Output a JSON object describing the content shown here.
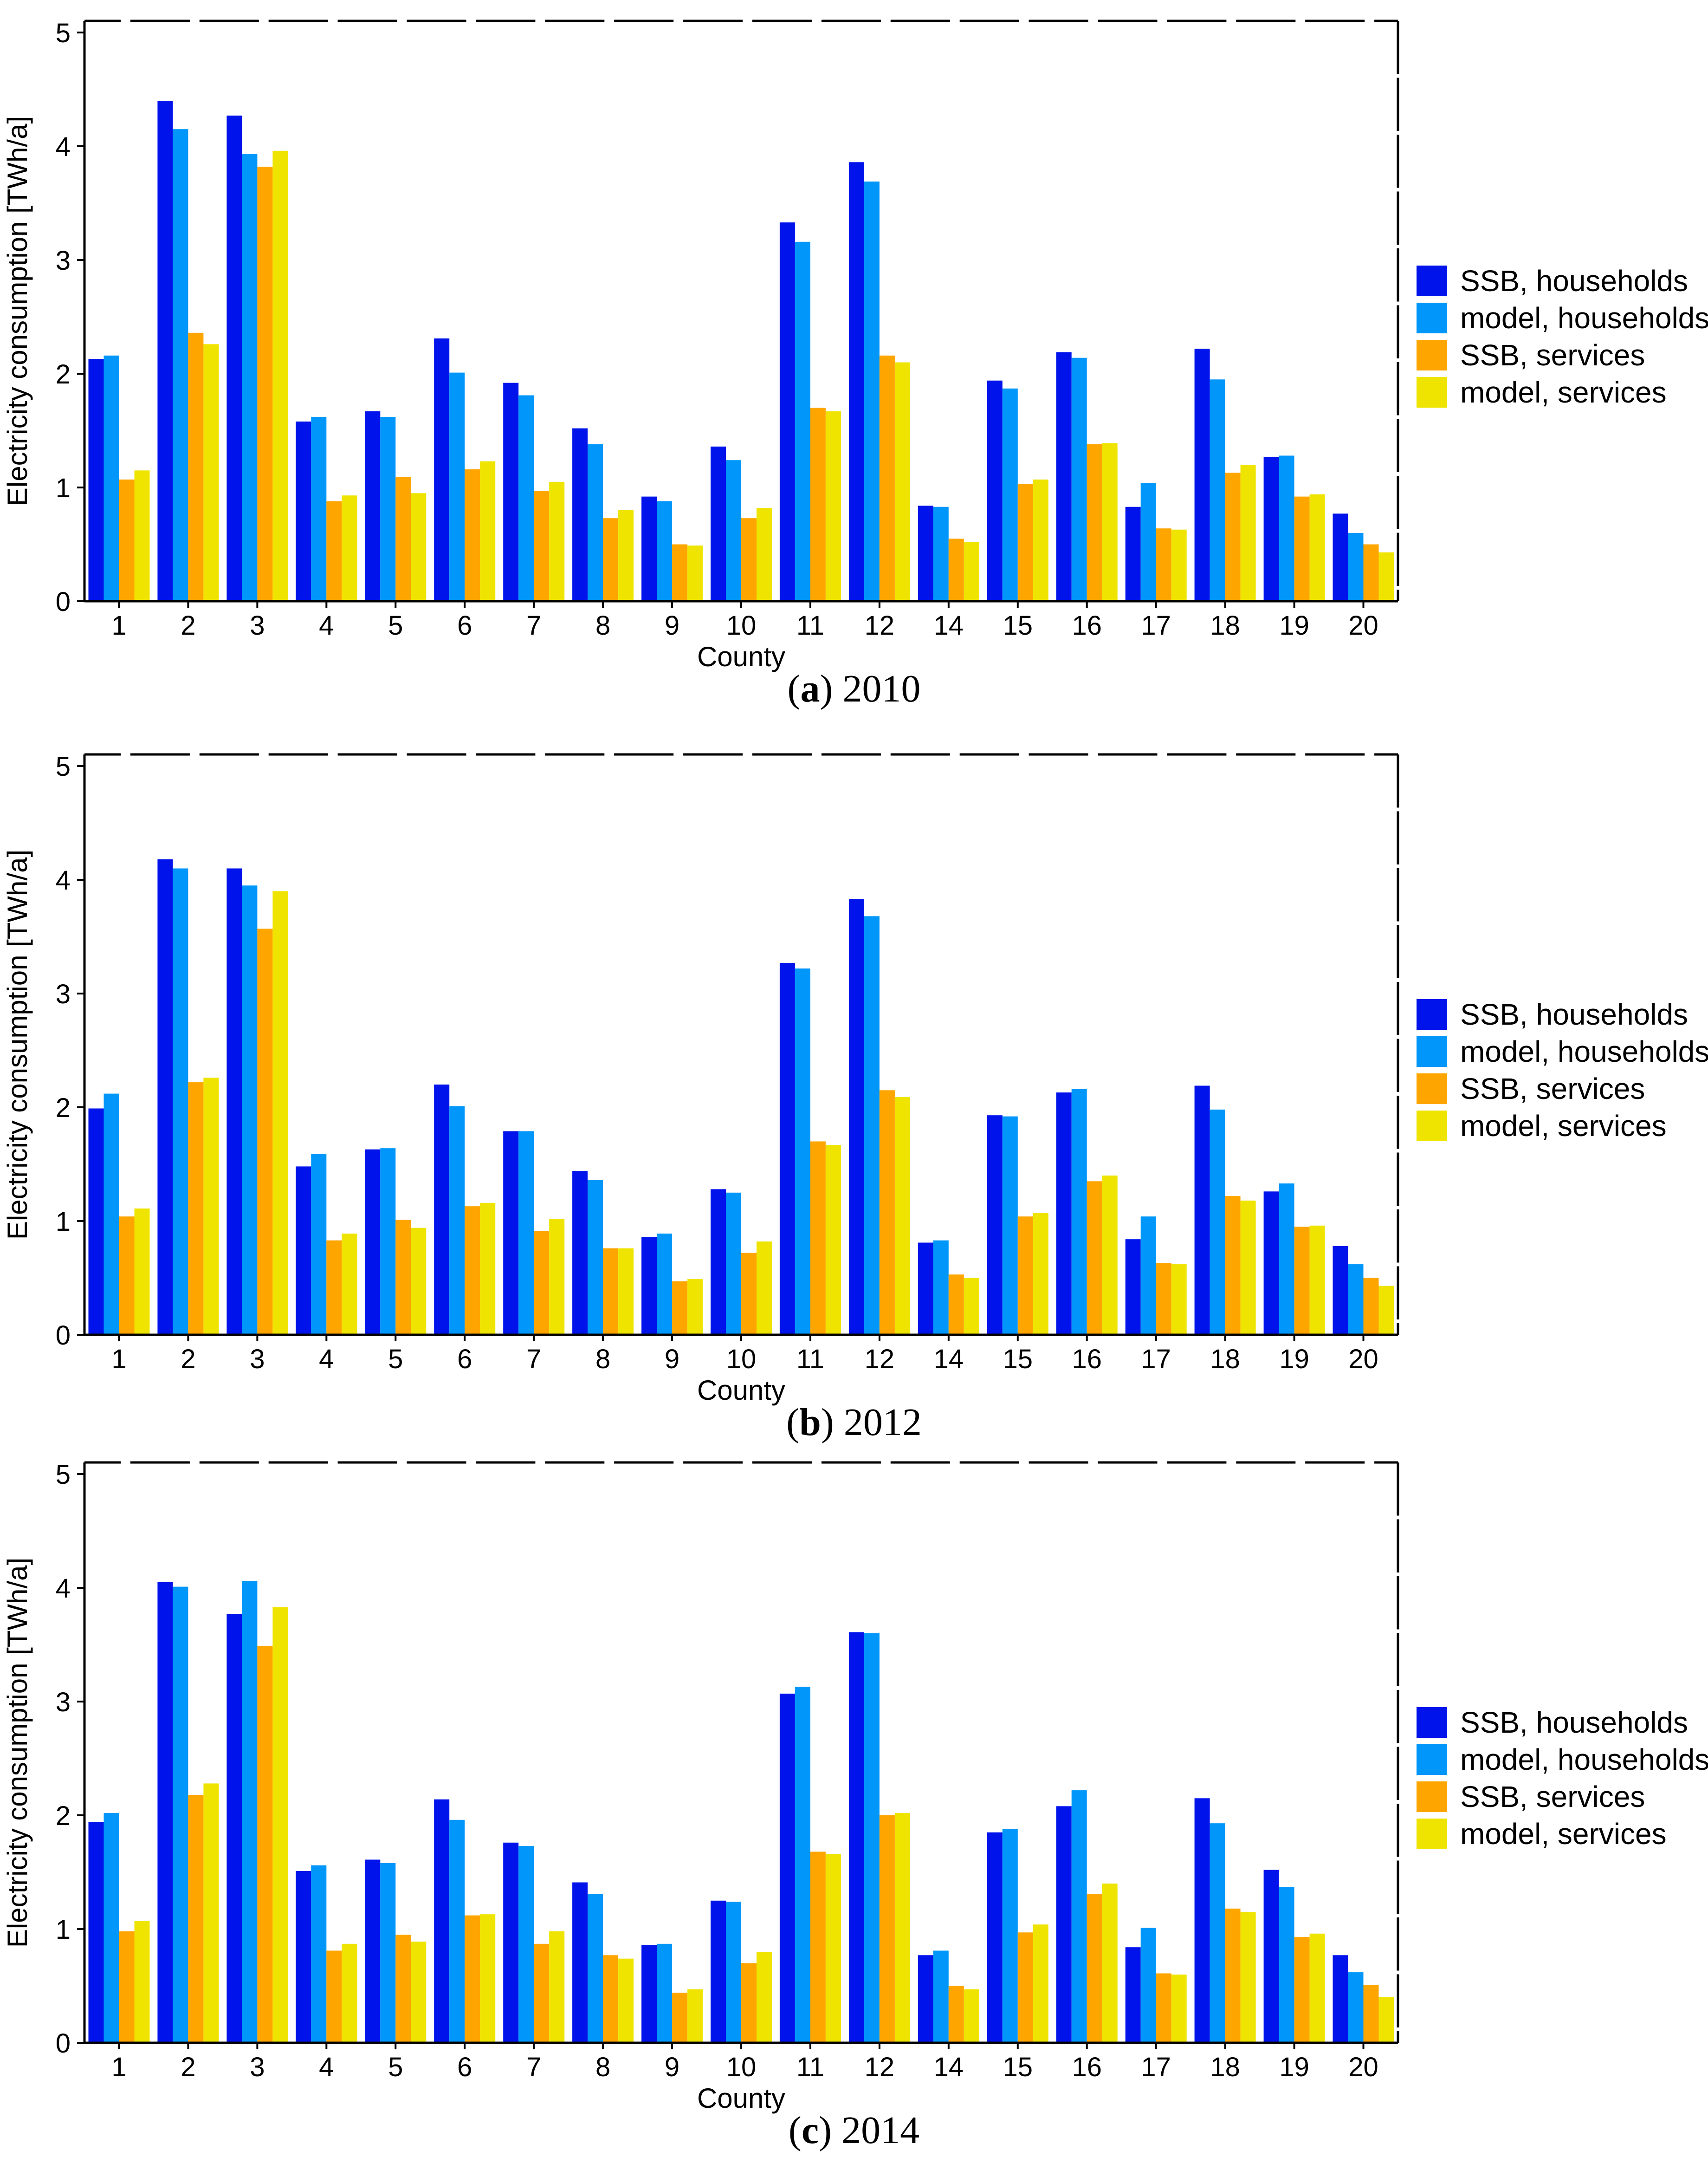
{
  "figure": {
    "background": "#ffffff",
    "text_color": "#000000",
    "y_axis_label": "Electricity consumption [TWh/a]",
    "x_axis_label": "County",
    "y_ticks": [
      "0",
      "1",
      "2",
      "3",
      "4",
      "5"
    ],
    "series_keys": [
      "ssb-households",
      "model-households",
      "ssb-services",
      "model-services"
    ],
    "colors": {
      "ssb_households": "#0013eb",
      "model_households": "#0096fa",
      "ssb_services": "#ffa500",
      "model_services": "#efe400"
    }
  },
  "chart_data": [
    {
      "type": "bar",
      "caption_open": "(",
      "caption_letter": "a",
      "caption_close": ")",
      "caption_year": "2010",
      "title": "(a) 2010",
      "xlabel": "County",
      "ylabel": "Electricity consumption [TWh/a]",
      "ylim": [
        0,
        5.1
      ],
      "grid": false,
      "legend_position": "right",
      "categories": [
        "1",
        "2",
        "3",
        "4",
        "5",
        "6",
        "7",
        "8",
        "9",
        "10",
        "11",
        "12",
        "14",
        "15",
        "16",
        "17",
        "18",
        "19",
        "20"
      ],
      "series": [
        {
          "name": "SSB, households",
          "color": "#0013eb",
          "values": [
            2.13,
            4.4,
            4.27,
            1.58,
            1.67,
            2.31,
            1.92,
            1.52,
            0.92,
            1.36,
            3.33,
            3.86,
            0.84,
            1.94,
            2.19,
            0.83,
            2.22,
            1.27,
            0.77
          ]
        },
        {
          "name": "model, households",
          "color": "#0096fa",
          "values": [
            2.16,
            4.15,
            3.93,
            1.62,
            1.62,
            2.01,
            1.81,
            1.38,
            0.88,
            1.24,
            3.16,
            3.69,
            0.83,
            1.87,
            2.14,
            1.04,
            1.95,
            1.28,
            0.6
          ]
        },
        {
          "name": "SSB, services",
          "color": "#ffa500",
          "values": [
            1.07,
            2.36,
            3.82,
            0.88,
            1.09,
            1.16,
            0.97,
            0.73,
            0.5,
            0.73,
            1.7,
            2.16,
            0.55,
            1.03,
            1.38,
            0.64,
            1.13,
            0.92,
            0.5
          ]
        },
        {
          "name": "model, services",
          "color": "#efe400",
          "values": [
            1.15,
            2.26,
            3.96,
            0.93,
            0.95,
            1.23,
            1.05,
            0.8,
            0.49,
            0.82,
            1.67,
            2.1,
            0.52,
            1.07,
            1.39,
            0.63,
            1.2,
            0.94,
            0.43
          ]
        }
      ]
    },
    {
      "type": "bar",
      "caption_open": "(",
      "caption_letter": "b",
      "caption_close": ")",
      "caption_year": "2012",
      "title": "(b) 2012",
      "xlabel": "County",
      "ylabel": "Electricity consumption [TWh/a]",
      "ylim": [
        0,
        5.1
      ],
      "grid": false,
      "legend_position": "right",
      "categories": [
        "1",
        "2",
        "3",
        "4",
        "5",
        "6",
        "7",
        "8",
        "9",
        "10",
        "11",
        "12",
        "14",
        "15",
        "16",
        "17",
        "18",
        "19",
        "20"
      ],
      "series": [
        {
          "name": "SSB, households",
          "color": "#0013eb",
          "values": [
            1.99,
            4.18,
            4.1,
            1.48,
            1.63,
            2.2,
            1.79,
            1.44,
            0.86,
            1.28,
            3.27,
            3.83,
            0.81,
            1.93,
            2.13,
            0.84,
            2.19,
            1.26,
            0.78
          ]
        },
        {
          "name": "model, households",
          "color": "#0096fa",
          "values": [
            2.12,
            4.1,
            3.95,
            1.59,
            1.64,
            2.01,
            1.79,
            1.36,
            0.89,
            1.25,
            3.22,
            3.68,
            0.83,
            1.92,
            2.16,
            1.04,
            1.98,
            1.33,
            0.62
          ]
        },
        {
          "name": "SSB, services",
          "color": "#ffa500",
          "values": [
            1.04,
            2.22,
            3.57,
            0.83,
            1.01,
            1.13,
            0.91,
            0.76,
            0.47,
            0.72,
            1.7,
            2.15,
            0.53,
            1.04,
            1.35,
            0.63,
            1.22,
            0.95,
            0.5
          ]
        },
        {
          "name": "model, services",
          "color": "#efe400",
          "values": [
            1.11,
            2.26,
            3.9,
            0.89,
            0.94,
            1.16,
            1.02,
            0.76,
            0.49,
            0.82,
            1.67,
            2.09,
            0.5,
            1.07,
            1.4,
            0.62,
            1.18,
            0.96,
            0.43
          ]
        }
      ]
    },
    {
      "type": "bar",
      "caption_open": "(",
      "caption_letter": "c",
      "caption_close": ")",
      "caption_year": "2014",
      "title": "(c) 2014",
      "xlabel": "County",
      "ylabel": "Electricity consumption [TWh/a]",
      "ylim": [
        0,
        5.1
      ],
      "grid": false,
      "legend_position": "right",
      "categories": [
        "1",
        "2",
        "3",
        "4",
        "5",
        "6",
        "7",
        "8",
        "9",
        "10",
        "11",
        "12",
        "14",
        "15",
        "16",
        "17",
        "18",
        "19",
        "20"
      ],
      "series": [
        {
          "name": "SSB, households",
          "color": "#0013eb",
          "values": [
            1.94,
            4.05,
            3.77,
            1.51,
            1.61,
            2.14,
            1.76,
            1.41,
            0.86,
            1.25,
            3.07,
            3.61,
            0.77,
            1.85,
            2.08,
            0.84,
            2.15,
            1.52,
            0.77
          ]
        },
        {
          "name": "model, households",
          "color": "#0096fa",
          "values": [
            2.02,
            4.01,
            4.06,
            1.56,
            1.58,
            1.96,
            1.73,
            1.31,
            0.87,
            1.24,
            3.13,
            3.6,
            0.81,
            1.88,
            2.22,
            1.01,
            1.93,
            1.37,
            0.62
          ]
        },
        {
          "name": "SSB, services",
          "color": "#ffa500",
          "values": [
            0.98,
            2.18,
            3.49,
            0.81,
            0.95,
            1.12,
            0.87,
            0.77,
            0.44,
            0.7,
            1.68,
            2.0,
            0.5,
            0.97,
            1.31,
            0.61,
            1.18,
            0.93,
            0.51
          ]
        },
        {
          "name": "model, services",
          "color": "#efe400",
          "values": [
            1.07,
            2.28,
            3.83,
            0.87,
            0.89,
            1.13,
            0.98,
            0.74,
            0.47,
            0.8,
            1.66,
            2.02,
            0.47,
            1.04,
            1.4,
            0.6,
            1.15,
            0.96,
            0.4
          ]
        }
      ]
    }
  ]
}
